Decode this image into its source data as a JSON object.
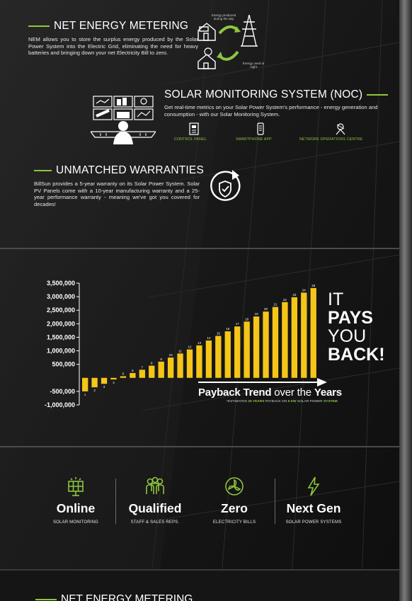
{
  "nem": {
    "title": "NET ENERGY METERING",
    "description": "NEM allows you to store the surplus energy produced by the Solar Power System into the Electric Grid, eliminating the need for heavy batteries and bringing down your net Electricity Bill to zero.",
    "icon_day": "Energy produced during the day",
    "icon_night": "Energy used at night"
  },
  "noc": {
    "title": "SOLAR MONITORING SYSTEM (NOC)",
    "description": "Get real-time metrics on your Solar Power System's performance - energy generation and consumption - with our Solar Monitoring System.",
    "items": [
      {
        "label": "CONTROL PANEL",
        "icon": "control-panel-icon"
      },
      {
        "label": "SMARTPHONE APP",
        "icon": "smartphone-icon"
      },
      {
        "label": "NETWORK OPERATIONS CENTRE",
        "icon": "network-operations-icon"
      }
    ]
  },
  "warranty": {
    "title": "UNMATCHED WARRANTIES",
    "description": "BillSun provides a 5-year warranty on its Solar Power System. Solar PV Panels come with a 10-year manufacturing warranty and a 25-year performance warranty - meaning we've got you covered for decades!"
  },
  "chart_data": {
    "type": "bar",
    "categories": [
      "1",
      "2",
      "3",
      "4",
      "5",
      "6",
      "7",
      "8",
      "9",
      "10",
      "11",
      "12",
      "13",
      "14",
      "15",
      "16",
      "17",
      "18",
      "19",
      "20",
      "21",
      "22",
      "23",
      "24",
      "25"
    ],
    "values": [
      -500000,
      -350000,
      -220000,
      -60000,
      60000,
      180000,
      300000,
      450000,
      600000,
      750000,
      900000,
      1050000,
      1200000,
      1380000,
      1550000,
      1720000,
      1900000,
      2080000,
      2270000,
      2450000,
      2620000,
      2800000,
      2980000,
      3150000,
      3320000
    ],
    "ytick_labels": [
      "3,500,000",
      "3,000,000",
      "2,500,000",
      "2,000,000",
      "1,500,000",
      "1,000,000",
      "500,000",
      "-500,000",
      "-1,000,000"
    ],
    "yticks": [
      3500000,
      3000000,
      2500000,
      2000000,
      1500000,
      1000000,
      500000,
      -500000,
      -1000000
    ],
    "ylim": [
      -1000000,
      3500000
    ],
    "bar_color": "#f5c518",
    "grid": false
  },
  "paysback": {
    "line1": "IT",
    "line2": "PAYS",
    "line3": "YOU",
    "line4": "BACK!"
  },
  "trend": {
    "title_bold": "Payback Trend",
    "title_rest": " over the ",
    "title_bold2": "Years",
    "note_a": "*ESTIMATED ",
    "note_b": "25 YEARS",
    "note_c": " PAYBACK ON ",
    "note_d": "5 KW",
    "note_e": " SOLAR POWER ",
    "note_f": "SYSTEM"
  },
  "features": [
    {
      "title": "Online",
      "sub": "SOLAR MONITORING",
      "icon": "solar-panel-icon"
    },
    {
      "title": "Qualified",
      "sub": "STAFF & SALES REPS.",
      "icon": "staff-icon"
    },
    {
      "title": "Zero",
      "sub": "ELECTRICITY BILLS",
      "icon": "zero-bills-icon"
    },
    {
      "title": "Next Gen",
      "sub": "SOLAR POWER SYSTEMS",
      "icon": "lightning-icon"
    }
  ],
  "colors": {
    "accent": "#8dc63f",
    "bar": "#f5c518",
    "bg": "#181818"
  }
}
